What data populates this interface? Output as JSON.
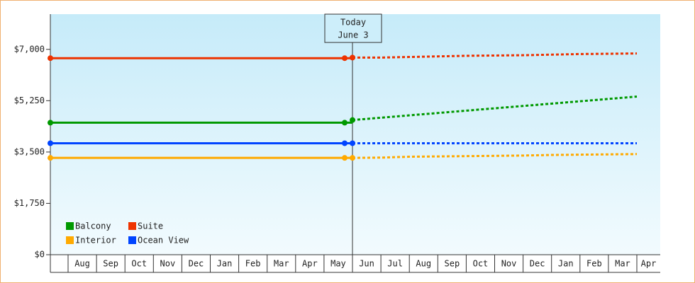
{
  "chart_data": {
    "type": "line",
    "categories": [
      null,
      "Aug",
      "Sep",
      "Oct",
      "Nov",
      "Dec",
      "Jan",
      "Feb",
      "Mar",
      "Apr",
      "May",
      "Jun",
      "Jul",
      "Aug",
      "Sep",
      "Oct",
      "Nov",
      "Dec",
      "Jan",
      "Feb",
      "Mar",
      "Apr"
    ],
    "series": [
      {
        "name": "Balcony",
        "color": "#009900",
        "values": [
          4500,
          4500,
          4500,
          4500,
          4500,
          4500,
          4500,
          4500,
          4500,
          4500,
          4500,
          4500,
          null,
          null,
          null,
          null,
          null,
          null,
          null,
          null,
          null,
          null
        ],
        "forecast": [
          null,
          null,
          null,
          null,
          null,
          null,
          null,
          null,
          null,
          null,
          null,
          4590,
          4670,
          4750,
          4830,
          4910,
          4990,
          5070,
          5150,
          5230,
          5310,
          5390
        ]
      },
      {
        "name": "Suite",
        "color": "#ee3300",
        "values": [
          6700,
          6700,
          6700,
          6700,
          6700,
          6700,
          6700,
          6700,
          6700,
          6700,
          6700,
          6700,
          null,
          null,
          null,
          null,
          null,
          null,
          null,
          null,
          null,
          null
        ],
        "forecast": [
          null,
          null,
          null,
          null,
          null,
          null,
          null,
          null,
          null,
          null,
          null,
          6720,
          6720,
          6740,
          6760,
          6780,
          6790,
          6800,
          6820,
          6840,
          6850,
          6860
        ]
      },
      {
        "name": "Interior",
        "color": "#ffaa00",
        "values": [
          3300,
          3300,
          3300,
          3300,
          3300,
          3300,
          3300,
          3300,
          3300,
          3300,
          3300,
          3300,
          null,
          null,
          null,
          null,
          null,
          null,
          null,
          null,
          null,
          null
        ],
        "forecast": [
          null,
          null,
          null,
          null,
          null,
          null,
          null,
          null,
          null,
          null,
          null,
          3300,
          3310,
          3340,
          3350,
          3360,
          3370,
          3380,
          3400,
          3410,
          3420,
          3430
        ]
      },
      {
        "name": "Ocean View",
        "color": "#0044ff",
        "values": [
          3800,
          3800,
          3800,
          3800,
          3800,
          3800,
          3800,
          3800,
          3800,
          3800,
          3800,
          3800,
          null,
          null,
          null,
          null,
          null,
          null,
          null,
          null,
          null,
          null
        ],
        "forecast": [
          null,
          null,
          null,
          null,
          null,
          null,
          null,
          null,
          null,
          null,
          null,
          3800,
          3800,
          3800,
          3800,
          3800,
          3800,
          3800,
          3800,
          3800,
          3800,
          3800
        ]
      }
    ],
    "ylim": [
      0,
      8200
    ],
    "yticks": [
      {
        "value": 0,
        "label": "$0"
      },
      {
        "value": 1750,
        "label": "$1,750"
      },
      {
        "value": 3500,
        "label": "$3,500"
      },
      {
        "value": 5250,
        "label": "$5,250"
      },
      {
        "value": 7000,
        "label": "$7,000"
      }
    ],
    "annotation": {
      "index": 11,
      "lines": [
        "Today",
        "June 3"
      ]
    },
    "legend": "bottom-left"
  }
}
